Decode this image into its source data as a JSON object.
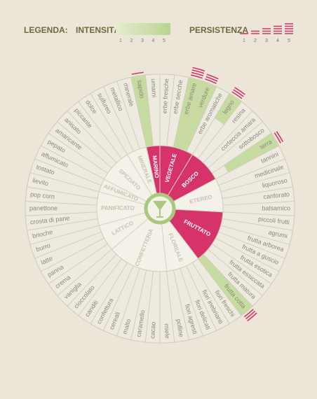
{
  "legend": {
    "title": "LEGENDA:",
    "intensity": {
      "label": "INTENSITÀ",
      "scale": [
        1,
        2,
        3,
        4,
        5
      ],
      "color": "#c6dba0"
    },
    "persistence": {
      "label": "PERSISTENZA",
      "scale": [
        1,
        2,
        3,
        4,
        5
      ],
      "color": "#d6336b"
    }
  },
  "wheel": {
    "highlight_color": "#d6336b",
    "categories": [
      {
        "name": "VEGETALE",
        "descriptors": [
          {
            "name": "erbe fresche"
          },
          {
            "name": "erbe secche"
          },
          {
            "name": "erbe amare",
            "intensity": 5,
            "persistence": 4
          },
          {
            "name": "verdure",
            "intensity": 5,
            "persistence": 3
          },
          {
            "name": "erbe aromatiche"
          }
        ]
      },
      {
        "name": "BOSCO",
        "descriptors": [
          {
            "name": "legno",
            "intensity": 2,
            "persistence": 3
          },
          {
            "name": "resina"
          },
          {
            "name": "corteccia amara"
          },
          {
            "name": "sottobosco"
          },
          {
            "name": "terra",
            "intensity": 4,
            "persistence": 2
          }
        ]
      },
      {
        "name": "ETEREO",
        "descriptors": [
          {
            "name": "tannini"
          },
          {
            "name": "medicinale"
          },
          {
            "name": "liquoroso"
          },
          {
            "name": "canforato"
          },
          {
            "name": "balsamico"
          }
        ]
      },
      {
        "name": "FRUTTATO",
        "descriptors": [
          {
            "name": "piccoli frutti"
          },
          {
            "name": "agrumi"
          },
          {
            "name": "frutta arborea"
          },
          {
            "name": "frutta a guscio"
          },
          {
            "name": "frutta esotica"
          },
          {
            "name": "frutta essiccata"
          },
          {
            "name": "frutta matura"
          },
          {
            "name": "frutta cotta",
            "intensity": 5,
            "persistence": 3
          }
        ]
      },
      {
        "name": "FLOREALE",
        "descriptors": [
          {
            "name": "fiori freschi"
          },
          {
            "name": "fiori inebrianti"
          },
          {
            "name": "fiori delicati"
          },
          {
            "name": "fiori agresti"
          },
          {
            "name": "polline"
          }
        ]
      },
      {
        "name": "CONFETTERIA",
        "descriptors": [
          {
            "name": "miele"
          },
          {
            "name": "cacao"
          },
          {
            "name": "caramello"
          },
          {
            "name": "malto"
          },
          {
            "name": "cereali"
          },
          {
            "name": "confettura"
          },
          {
            "name": "canditi"
          },
          {
            "name": "cioccolato"
          },
          {
            "name": "vaniglia"
          }
        ]
      },
      {
        "name": "LATTICO",
        "descriptors": [
          {
            "name": "crema"
          },
          {
            "name": "panna"
          },
          {
            "name": "latte"
          },
          {
            "name": "burro"
          }
        ]
      },
      {
        "name": "PANIFICATO",
        "descriptors": [
          {
            "name": "brioche"
          },
          {
            "name": "crosta di pane"
          },
          {
            "name": "panettone"
          },
          {
            "name": "pop corn"
          },
          {
            "name": "lievito"
          }
        ]
      },
      {
        "name": "AFFUMICATO",
        "descriptors": [
          {
            "name": "tostato"
          },
          {
            "name": "affumicato"
          }
        ]
      },
      {
        "name": "SPEZIATO",
        "descriptors": [
          {
            "name": "pepato"
          },
          {
            "name": "amaricante"
          },
          {
            "name": "anisato"
          },
          {
            "name": "piccante"
          },
          {
            "name": "dolce"
          }
        ]
      },
      {
        "name": "MINERALE",
        "descriptors": [
          {
            "name": "sulfureo"
          },
          {
            "name": "metallico"
          },
          {
            "name": "minerale"
          }
        ]
      },
      {
        "name": "MARINO",
        "descriptors": [
          {
            "name": "sapido",
            "intensity": 5,
            "persistence": 1
          },
          {
            "name": "umami"
          }
        ]
      }
    ]
  }
}
